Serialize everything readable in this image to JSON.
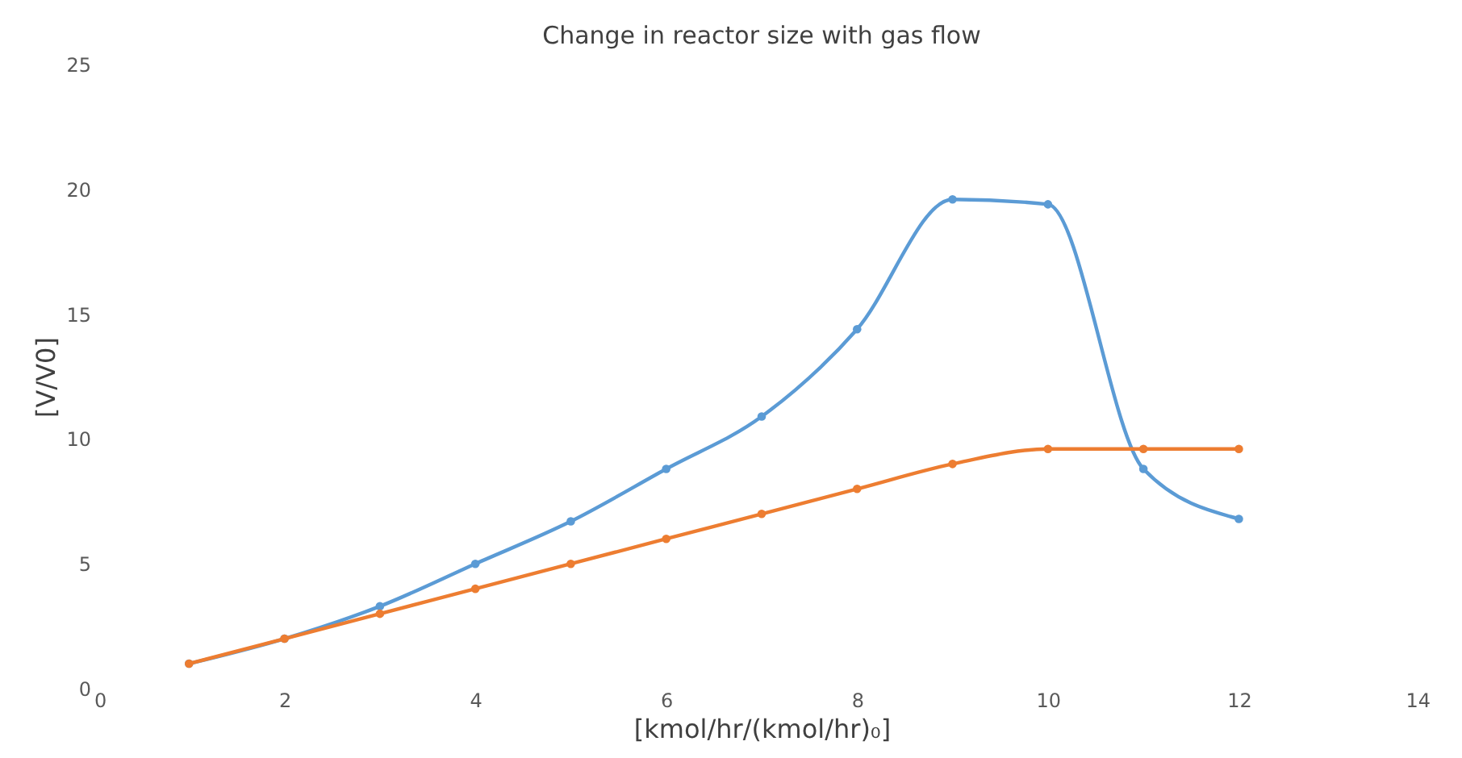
{
  "chart_data": {
    "type": "line",
    "title": "Change in reactor size with gas flow",
    "xlabel": "[kmol/hr/(kmol/hr)₀]",
    "ylabel": "[V/V0]",
    "x": [
      1,
      2,
      3,
      4,
      5,
      6,
      7,
      8,
      9,
      10,
      11,
      12
    ],
    "series": [
      {
        "color": "#5b9bd5",
        "values": [
          1,
          2,
          3.3,
          5,
          6.7,
          8.8,
          10.9,
          14.4,
          19.6,
          19.4,
          8.8,
          6.8
        ]
      },
      {
        "color": "#ed7d31",
        "values": [
          1,
          2,
          3,
          4,
          5,
          6,
          7,
          8,
          9,
          9.6,
          9.6,
          9.6
        ]
      }
    ],
    "xlim": [
      0,
      14
    ],
    "xticks": [
      0,
      2,
      4,
      6,
      8,
      10,
      12,
      14
    ],
    "ylim": [
      0,
      25
    ],
    "yticks": [
      0,
      5,
      10,
      15,
      20,
      25
    ],
    "grid": false,
    "marker": "circle",
    "line_style": "solid"
  }
}
